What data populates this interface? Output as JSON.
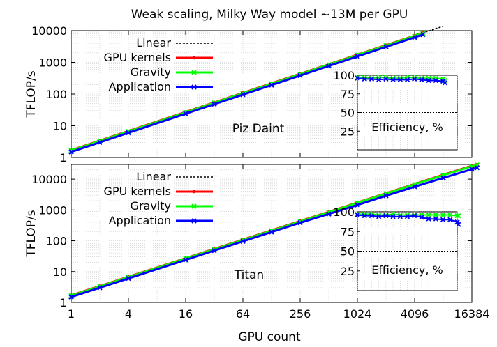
{
  "figure": {
    "title": "Weak scaling, Milky Way model ~13M per GPU",
    "xlabel": "GPU count"
  },
  "chart_data": [
    {
      "type": "line",
      "panel_label": "Piz Daint",
      "ylabel": "TFLOP/s",
      "x_scale": "log2",
      "y_scale": "log10",
      "xlim": [
        1,
        16384
      ],
      "ylim": [
        1,
        10000
      ],
      "x_ticks": [
        "1",
        "4",
        "16",
        "64",
        "256",
        "1024",
        "4096",
        "16384"
      ],
      "y_ticks": [
        "1",
        "10",
        "100",
        "1000",
        "10000"
      ],
      "grid": true,
      "legend_position": "top-left",
      "series": [
        {
          "name": "Linear",
          "color": "#000000",
          "style": "dotted",
          "x": [
            1,
            8192
          ],
          "y": [
            1.7,
            13926
          ]
        },
        {
          "name": "GPU kernels",
          "color": "#ff0000",
          "x": [
            1,
            2,
            4,
            16,
            32,
            64,
            128,
            256,
            512,
            1024,
            2048,
            4096,
            5000
          ],
          "y": [
            1.7,
            3.4,
            6.8,
            27.2,
            54.4,
            108.8,
            217.6,
            435,
            870,
            1741,
            3482,
            6963,
            8500
          ]
        },
        {
          "name": "Gravity",
          "color": "#00ff00",
          "x": [
            1,
            2,
            4,
            16,
            32,
            64,
            128,
            256,
            512,
            1024,
            2048,
            4096,
            5000
          ],
          "y": [
            1.65,
            3.3,
            6.6,
            26.4,
            52.8,
            105.6,
            211,
            422,
            845,
            1690,
            3379,
            6758,
            8200
          ]
        },
        {
          "name": "Application",
          "color": "#0000ff",
          "x": [
            1,
            2,
            4,
            16,
            32,
            64,
            128,
            256,
            512,
            1024,
            2048,
            4096,
            5000
          ],
          "y": [
            1.5,
            3.0,
            6.0,
            24.0,
            48.0,
            96.0,
            192,
            384,
            768,
            1536,
            3072,
            6144,
            7500
          ]
        }
      ],
      "inset": {
        "label": "Efficiency, %",
        "ylim": [
          0,
          100
        ],
        "y_ticks": [
          "25",
          "50",
          "75",
          "100"
        ],
        "reference_line": 50,
        "series": [
          {
            "name": "Gravity",
            "color": "#00ff00",
            "x": [
              1,
              2,
              4,
              8,
              16,
              32,
              64,
              128,
              256,
              512,
              1024,
              2048,
              4096,
              5000
            ],
            "y": [
              97,
              97,
              96,
              97,
              97,
              96,
              96,
              97,
              97,
              96,
              96,
              96,
              95,
              93
            ]
          },
          {
            "name": "Application",
            "color": "#0000ff",
            "x": [
              1,
              2,
              4,
              8,
              16,
              32,
              64,
              128,
              256,
              512,
              1024,
              2048,
              4096,
              5000
            ],
            "y": [
              96,
              95,
              95,
              94,
              95,
              94,
              94,
              94,
              95,
              94,
              93,
              93,
              92,
              90
            ]
          }
        ]
      }
    },
    {
      "type": "line",
      "panel_label": "Titan",
      "ylabel": "TFLOP/s",
      "x_scale": "log2",
      "y_scale": "log10",
      "xlim": [
        1,
        16384
      ],
      "ylim": [
        1,
        30000
      ],
      "x_ticks": [
        "1",
        "4",
        "16",
        "64",
        "256",
        "1024",
        "4096",
        "16384"
      ],
      "y_ticks": [
        "1",
        "10",
        "100",
        "1000",
        "10000"
      ],
      "grid": true,
      "legend_position": "top-left",
      "series": [
        {
          "name": "Linear",
          "color": "#000000",
          "style": "dotted",
          "x": [
            1,
            18688
          ],
          "y": [
            1.7,
            31770
          ]
        },
        {
          "name": "GPU kernels",
          "color": "#ff0000",
          "x": [
            1,
            2,
            4,
            16,
            32,
            64,
            128,
            256,
            512,
            1024,
            2048,
            4096,
            8192,
            16384,
            18600
          ],
          "y": [
            1.7,
            3.4,
            6.8,
            27.2,
            54.4,
            108.8,
            217.6,
            435,
            870,
            1741,
            3482,
            6963,
            13900,
            27000,
            30000
          ]
        },
        {
          "name": "Gravity",
          "color": "#00ff00",
          "x": [
            1,
            2,
            4,
            16,
            32,
            64,
            128,
            256,
            512,
            1024,
            2048,
            4096,
            8192,
            16384,
            18600
          ],
          "y": [
            1.65,
            3.3,
            6.6,
            26.4,
            52.8,
            105.6,
            211,
            422,
            845,
            1690,
            3379,
            6758,
            13400,
            26000,
            29000
          ]
        },
        {
          "name": "Application",
          "color": "#0000ff",
          "x": [
            1,
            2,
            4,
            16,
            32,
            64,
            128,
            256,
            512,
            1024,
            2048,
            4096,
            8192,
            16384,
            18600
          ],
          "y": [
            1.5,
            3.0,
            6.0,
            24.0,
            48.0,
            96.0,
            192,
            384,
            740,
            1450,
            2900,
            5700,
            11000,
            21000,
            23500
          ]
        }
      ],
      "inset": {
        "label": "Efficiency, %",
        "ylim": [
          0,
          100
        ],
        "y_ticks": [
          "25",
          "50",
          "75",
          "100"
        ],
        "reference_line": 50,
        "series": [
          {
            "name": "Gravity",
            "color": "#00ff00",
            "x": [
              1,
              2,
              4,
              8,
              16,
              32,
              64,
              128,
              256,
              512,
              1024,
              2048,
              4096,
              8192,
              16384,
              18600
            ],
            "y": [
              97,
              97,
              97,
              96,
              96,
              97,
              96,
              96,
              96,
              96,
              96,
              96,
              96,
              96,
              95,
              95
            ]
          },
          {
            "name": "Application",
            "color": "#0000ff",
            "x": [
              1,
              2,
              4,
              8,
              16,
              32,
              64,
              128,
              256,
              512,
              1024,
              2048,
              4096,
              8192,
              16384,
              18600
            ],
            "y": [
              96,
              95,
              95,
              94,
              95,
              94,
              94,
              94,
              95,
              93,
              91,
              91,
              90,
              90,
              87,
              84
            ]
          }
        ]
      }
    }
  ]
}
